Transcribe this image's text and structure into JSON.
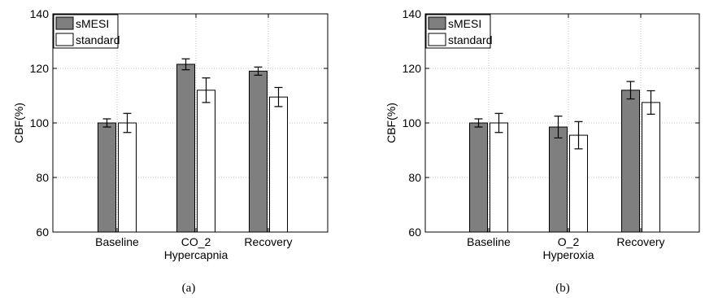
{
  "chart_data": [
    {
      "type": "bar",
      "panel_label": "(a)",
      "categories": [
        "Baseline",
        "CO_2",
        "Recovery"
      ],
      "xlabel": "Hypercapnia",
      "ylabel": "CBF(%)",
      "ylim": [
        60,
        140
      ],
      "yticks": [
        60,
        80,
        100,
        120,
        140
      ],
      "grid": true,
      "legend_position": "top-left",
      "series": [
        {
          "name": "sMESI",
          "color": "#7f7f7f",
          "values": [
            100,
            121.5,
            119
          ],
          "errors": [
            1.5,
            2,
            1.5
          ]
        },
        {
          "name": "standard",
          "color": "#ffffff",
          "values": [
            100,
            112,
            109.5
          ],
          "errors": [
            3.5,
            4.5,
            3.5
          ]
        }
      ]
    },
    {
      "type": "bar",
      "panel_label": "(b)",
      "categories": [
        "Baseline",
        "O_2",
        "Recovery"
      ],
      "xlabel": "Hyperoxia",
      "ylabel": "CBF(%)",
      "ylim": [
        60,
        140
      ],
      "yticks": [
        60,
        80,
        100,
        120,
        140
      ],
      "grid": true,
      "legend_position": "top-left",
      "series": [
        {
          "name": "sMESI",
          "color": "#7f7f7f",
          "values": [
            100,
            98.5,
            112
          ],
          "errors": [
            1.5,
            4,
            3.2
          ]
        },
        {
          "name": "standard",
          "color": "#ffffff",
          "values": [
            100,
            95.5,
            107.5
          ],
          "errors": [
            3.5,
            5,
            4.3
          ]
        }
      ]
    }
  ]
}
